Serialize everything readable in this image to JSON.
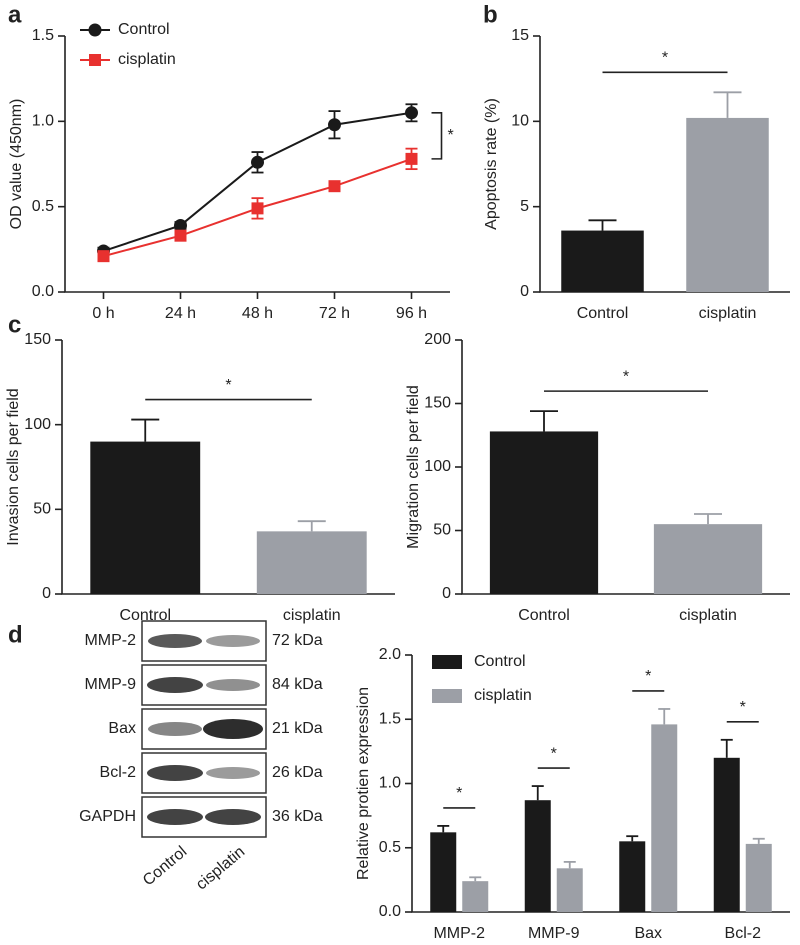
{
  "chart_data": [
    {
      "type": "line",
      "panel": "a",
      "ylabel": "OD value (450nm)",
      "categories": [
        "0 h",
        "24 h",
        "48 h",
        "72 h",
        "96 h"
      ],
      "series": [
        {
          "name": "Control",
          "color": "#1a1a1a",
          "marker": "circle",
          "values": [
            0.24,
            0.39,
            0.76,
            0.98,
            1.05
          ],
          "errors": [
            0.02,
            0.02,
            0.06,
            0.08,
            0.05
          ]
        },
        {
          "name": "cisplatin",
          "color": "#e8312f",
          "marker": "square",
          "values": [
            0.21,
            0.33,
            0.49,
            0.62,
            0.78
          ],
          "errors": [
            0.02,
            0.02,
            0.06,
            0.02,
            0.06
          ]
        }
      ],
      "ylim": [
        0,
        1.5
      ],
      "yticks": [
        {
          "value": 0,
          "label": "0.0"
        },
        0.5,
        {
          "value": 1,
          "label": "1.0"
        },
        1.5
      ],
      "annotation": "*"
    },
    {
      "type": "bar",
      "panel": "b",
      "ylabel": "Apoptosis rate (%)",
      "categories": [
        "Control",
        "cisplatin"
      ],
      "values": [
        3.6,
        10.2
      ],
      "errors": [
        0.6,
        1.5
      ],
      "colors": [
        "#1a1a1a",
        "#9c9fa6"
      ],
      "ylim": [
        0,
        15
      ],
      "yticks": [
        0,
        5,
        10,
        15
      ],
      "annotation": "*"
    },
    {
      "type": "bar",
      "panel": "c",
      "ylabel": "Invasion cells per field",
      "categories": [
        "Control",
        "cisplatin"
      ],
      "values": [
        90,
        37
      ],
      "errors": [
        13,
        6
      ],
      "colors": [
        "#1a1a1a",
        "#9c9fa6"
      ],
      "ylim": [
        0,
        150
      ],
      "yticks": [
        0,
        50,
        100,
        150
      ],
      "annotation": "*"
    },
    {
      "type": "bar",
      "ylabel": "Migration cells per field",
      "categories": [
        "Control",
        "cisplatin"
      ],
      "values": [
        128,
        55
      ],
      "errors": [
        16,
        8
      ],
      "colors": [
        "#1a1a1a",
        "#9c9fa6"
      ],
      "ylim": [
        0,
        200
      ],
      "yticks": [
        0,
        50,
        100,
        150,
        200
      ],
      "annotation": "*"
    },
    {
      "type": "grouped-bar",
      "panel": "d",
      "ylabel": "Relative protien expression",
      "categories": [
        "MMP-2",
        "MMP-9",
        "Bax",
        "Bcl-2"
      ],
      "series": [
        {
          "name": "Control",
          "color": "#1a1a1a",
          "values": [
            0.62,
            0.87,
            0.55,
            1.2
          ],
          "errors": [
            0.05,
            0.11,
            0.04,
            0.14
          ]
        },
        {
          "name": "cisplatin",
          "color": "#9c9fa6",
          "values": [
            0.24,
            0.34,
            1.46,
            0.53
          ],
          "errors": [
            0.03,
            0.05,
            0.12,
            0.04
          ]
        }
      ],
      "ylim": [
        0,
        2
      ],
      "yticks": [
        {
          "value": 0,
          "label": "0.0"
        },
        0.5,
        {
          "value": 1,
          "label": "1.0"
        },
        1.5,
        {
          "value": 2,
          "label": "2.0"
        }
      ],
      "annotations": [
        "*",
        "*",
        "*",
        "*"
      ]
    }
  ],
  "blot": {
    "proteins": [
      "MMP-2",
      "MMP-9",
      "Bax",
      "Bcl-2",
      "GAPDH"
    ],
    "sizes": [
      "72 kDa",
      "84 kDa",
      "21 kDa",
      "26 kDa",
      "36 kDa"
    ],
    "lanes": [
      "Control",
      "cisplatin"
    ]
  }
}
